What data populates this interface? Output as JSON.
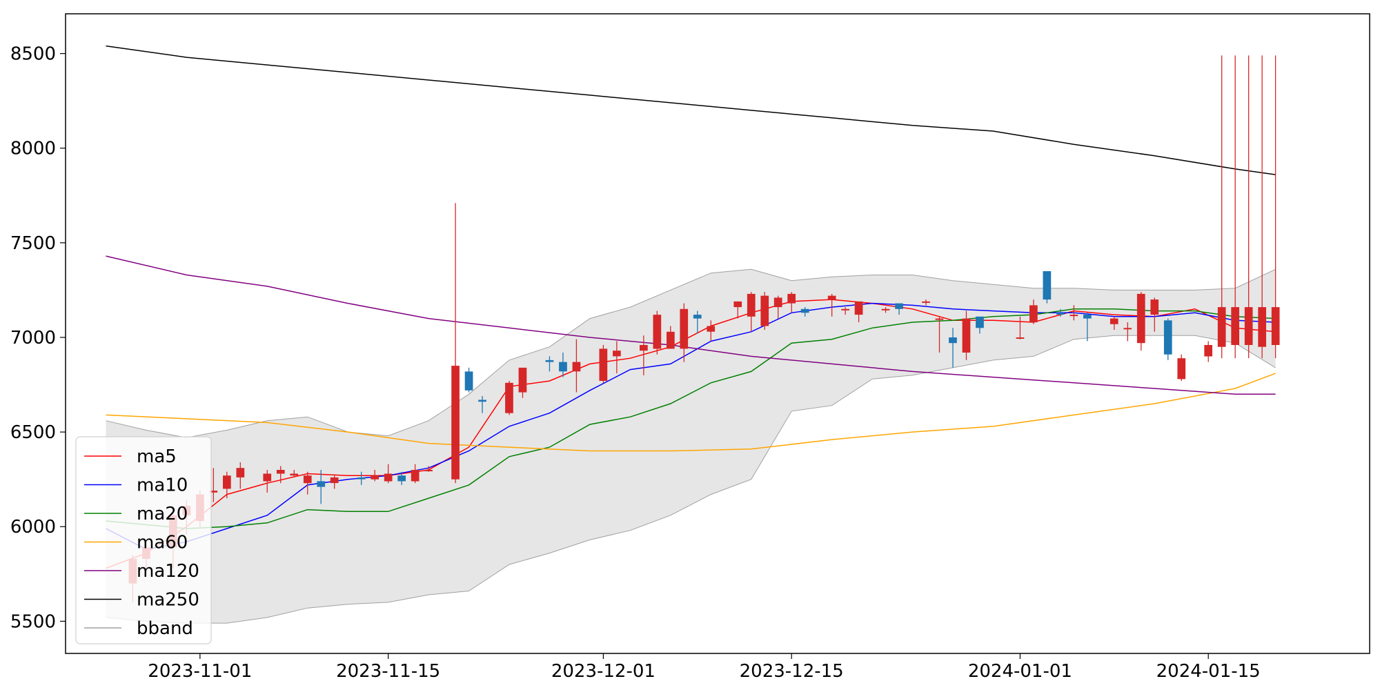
{
  "chart_data": {
    "type": "candlestick",
    "title": "",
    "xlabel": "",
    "ylabel": "",
    "xlim": [
      "2023-10-22",
      "2024-01-27"
    ],
    "ylim": [
      5330,
      8710
    ],
    "grid": false,
    "legend_position": "lower-left",
    "y_ticks": [
      5500,
      6000,
      6500,
      7000,
      7500,
      8000,
      8500
    ],
    "y_tick_labels": [
      "5500",
      "6000",
      "6500",
      "7000",
      "7500",
      "8000",
      "8500"
    ],
    "x_ticks": [
      "2023-11-01",
      "2023-11-15",
      "2023-12-01",
      "2023-12-15",
      "2024-01-01",
      "2024-01-15"
    ],
    "x_tick_labels": [
      "2023-11-01",
      "2023-11-15",
      "2023-12-01",
      "2023-12-15",
      "2024-01-01",
      "2024-01-15"
    ],
    "colors": {
      "up": "#d62728",
      "down": "#1f77b4",
      "bband_fill": "#e6e6e6",
      "bband_line": "#a0a0a0"
    },
    "candles": {
      "x": [
        "2023-10-27",
        "2023-10-28",
        "2023-10-30",
        "2023-10-31",
        "2023-11-01",
        "2023-11-02",
        "2023-11-03",
        "2023-11-04",
        "2023-11-06",
        "2023-11-07",
        "2023-11-08",
        "2023-11-09",
        "2023-11-10",
        "2023-11-11",
        "2023-11-13",
        "2023-11-14",
        "2023-11-15",
        "2023-11-16",
        "2023-11-17",
        "2023-11-18",
        "2023-11-20",
        "2023-11-21",
        "2023-11-22",
        "2023-11-24",
        "2023-11-25",
        "2023-11-27",
        "2023-11-28",
        "2023-11-29",
        "2023-12-01",
        "2023-12-02",
        "2023-12-04",
        "2023-12-05",
        "2023-12-06",
        "2023-12-07",
        "2023-12-08",
        "2023-12-09",
        "2023-12-11",
        "2023-12-12",
        "2023-12-13",
        "2023-12-14",
        "2023-12-15",
        "2023-12-16",
        "2023-12-18",
        "2023-12-19",
        "2023-12-20",
        "2023-12-22",
        "2023-12-23",
        "2023-12-25",
        "2023-12-26",
        "2023-12-27",
        "2023-12-28",
        "2023-12-29",
        "2024-01-01",
        "2024-01-02",
        "2024-01-03",
        "2024-01-04",
        "2024-01-05",
        "2024-01-06",
        "2024-01-08",
        "2024-01-09",
        "2024-01-10",
        "2024-01-11",
        "2024-01-12",
        "2024-01-13",
        "2024-01-15",
        "2024-01-16",
        "2024-01-17",
        "2024-01-18",
        "2024-01-19",
        "2024-01-20"
      ],
      "open": [
        5700,
        5830,
        5890,
        6060,
        6030,
        6180,
        6200,
        6260,
        6240,
        6280,
        6270,
        6230,
        6240,
        6230,
        6260,
        6250,
        6240,
        6270,
        6240,
        6300,
        6250,
        6820,
        6670,
        6600,
        6710,
        6880,
        6870,
        6820,
        6770,
        6900,
        6930,
        6940,
        6940,
        6940,
        7120,
        7030,
        7160,
        7110,
        7060,
        7160,
        7180,
        7150,
        7200,
        7150,
        7120,
        7150,
        7180,
        7190,
        7100,
        7000,
        6920,
        7110,
        7000,
        7080,
        7350,
        7130,
        7120,
        7120,
        7070,
        7050,
        6970,
        7120,
        7090,
        6780,
        6900,
        6950,
        6960,
        6960,
        6950,
        6960
      ],
      "close": [
        5830,
        5890,
        6060,
        6110,
        6170,
        6190,
        6270,
        6310,
        6280,
        6300,
        6280,
        6270,
        6210,
        6260,
        6250,
        6270,
        6280,
        6240,
        6300,
        6300,
        6850,
        6720,
        6660,
        6760,
        6840,
        6870,
        6820,
        6870,
        6940,
        6930,
        6960,
        7120,
        7030,
        7150,
        7100,
        7060,
        7190,
        7230,
        7220,
        7210,
        7230,
        7130,
        7220,
        7150,
        7190,
        7150,
        7150,
        7190,
        7100,
        6970,
        7100,
        7050,
        7000,
        7170,
        7200,
        7120,
        7120,
        7100,
        7100,
        7050,
        7230,
        7200,
        6910,
        6890,
        6960,
        7160,
        7160,
        7160,
        7160,
        7160
      ],
      "high": [
        5850,
        5910,
        6080,
        6140,
        6190,
        6310,
        6290,
        6340,
        6300,
        6320,
        6300,
        6290,
        6300,
        6270,
        6290,
        6300,
        6330,
        6290,
        6330,
        6320,
        7710,
        6840,
        6690,
        6770,
        6840,
        6900,
        6920,
        6990,
        6960,
        6980,
        7010,
        7140,
        7060,
        7180,
        7140,
        7090,
        7190,
        7240,
        7240,
        7220,
        7240,
        7160,
        7230,
        7160,
        7190,
        7160,
        7160,
        7200,
        7110,
        7050,
        7140,
        7060,
        7110,
        7200,
        7350,
        7150,
        7170,
        7130,
        7110,
        7080,
        7240,
        7210,
        7100,
        6910,
        6980,
        8490,
        8490,
        8490,
        8490,
        8490
      ],
      "low": [
        5600,
        5760,
        5780,
        5960,
        6000,
        6130,
        6150,
        6200,
        6180,
        6230,
        6260,
        6170,
        6120,
        6200,
        6220,
        6240,
        6230,
        6220,
        6230,
        6290,
        6230,
        6710,
        6600,
        6590,
        6680,
        6820,
        6790,
        6710,
        6760,
        6810,
        6800,
        6910,
        6940,
        6870,
        7020,
        6980,
        7100,
        7030,
        7040,
        7100,
        7130,
        7110,
        7110,
        7120,
        7080,
        7130,
        7120,
        7170,
        6920,
        6840,
        6880,
        7020,
        6990,
        7070,
        7180,
        7110,
        7090,
        6980,
        7040,
        6980,
        6930,
        7030,
        6880,
        6770,
        6870,
        6890,
        6890,
        6890,
        6890,
        6890
      ]
    },
    "series": [
      {
        "name": "ma5",
        "color": "red",
        "x": [
          "2023-10-25",
          "2023-10-28",
          "2023-10-31",
          "2023-11-03",
          "2023-11-06",
          "2023-11-09",
          "2023-11-12",
          "2023-11-15",
          "2023-11-18",
          "2023-11-21",
          "2023-11-24",
          "2023-11-27",
          "2023-11-30",
          "2023-12-03",
          "2023-12-06",
          "2023-12-09",
          "2023-12-12",
          "2023-12-15",
          "2023-12-18",
          "2023-12-21",
          "2023-12-24",
          "2023-12-27",
          "2023-12-30",
          "2024-01-02",
          "2024-01-05",
          "2024-01-08",
          "2024-01-11",
          "2024-01-14",
          "2024-01-17",
          "2024-01-20"
        ],
        "y": [
          5780,
          5860,
          6000,
          6170,
          6230,
          6280,
          6270,
          6270,
          6300,
          6420,
          6740,
          6770,
          6860,
          6890,
          6950,
          7060,
          7130,
          7190,
          7200,
          7180,
          7150,
          7090,
          7090,
          7080,
          7140,
          7120,
          7110,
          7150,
          7050,
          7030
        ]
      },
      {
        "name": "ma10",
        "color": "blue",
        "x": [
          "2023-10-25",
          "2023-10-28",
          "2023-10-31",
          "2023-11-03",
          "2023-11-06",
          "2023-11-09",
          "2023-11-12",
          "2023-11-15",
          "2023-11-18",
          "2023-11-21",
          "2023-11-24",
          "2023-11-27",
          "2023-11-30",
          "2023-12-03",
          "2023-12-06",
          "2023-12-09",
          "2023-12-12",
          "2023-12-15",
          "2023-12-18",
          "2023-12-21",
          "2023-12-24",
          "2023-12-27",
          "2023-12-30",
          "2024-01-02",
          "2024-01-05",
          "2024-01-08",
          "2024-01-11",
          "2024-01-14",
          "2024-01-17",
          "2024-01-20"
        ],
        "y": [
          5990,
          5880,
          5920,
          5990,
          6060,
          6220,
          6250,
          6270,
          6310,
          6400,
          6530,
          6600,
          6720,
          6830,
          6860,
          6980,
          7030,
          7130,
          7160,
          7180,
          7170,
          7150,
          7140,
          7130,
          7130,
          7110,
          7110,
          7130,
          7090,
          7080
        ]
      },
      {
        "name": "ma20",
        "color": "green",
        "x": [
          "2023-10-25",
          "2023-10-28",
          "2023-10-31",
          "2023-11-03",
          "2023-11-06",
          "2023-11-09",
          "2023-11-12",
          "2023-11-15",
          "2023-11-18",
          "2023-11-21",
          "2023-11-24",
          "2023-11-27",
          "2023-11-30",
          "2023-12-03",
          "2023-12-06",
          "2023-12-09",
          "2023-12-12",
          "2023-12-15",
          "2023-12-18",
          "2023-12-21",
          "2023-12-24",
          "2023-12-27",
          "2023-12-30",
          "2024-01-02",
          "2024-01-05",
          "2024-01-08",
          "2024-01-11",
          "2024-01-14",
          "2024-01-17",
          "2024-01-20"
        ],
        "y": [
          6030,
          6010,
          5990,
          6000,
          6020,
          6090,
          6080,
          6080,
          6150,
          6220,
          6370,
          6420,
          6540,
          6580,
          6650,
          6760,
          6820,
          6970,
          6990,
          7050,
          7080,
          7090,
          7110,
          7120,
          7150,
          7150,
          7140,
          7140,
          7110,
          7100
        ]
      },
      {
        "name": "ma60",
        "color": "orange",
        "x": [
          "2023-10-25",
          "2023-10-31",
          "2023-11-06",
          "2023-11-12",
          "2023-11-18",
          "2023-11-24",
          "2023-11-30",
          "2023-12-06",
          "2023-12-12",
          "2023-12-18",
          "2023-12-24",
          "2023-12-30",
          "2024-01-05",
          "2024-01-11",
          "2024-01-17",
          "2024-01-20"
        ],
        "y": [
          6590,
          6570,
          6550,
          6500,
          6440,
          6420,
          6400,
          6400,
          6410,
          6460,
          6500,
          6530,
          6590,
          6650,
          6730,
          6810
        ]
      },
      {
        "name": "ma120",
        "color": "purple",
        "x": [
          "2023-10-25",
          "2023-10-31",
          "2023-11-06",
          "2023-11-12",
          "2023-11-18",
          "2023-11-24",
          "2023-11-30",
          "2023-12-06",
          "2023-12-12",
          "2023-12-18",
          "2023-12-24",
          "2023-12-30",
          "2024-01-05",
          "2024-01-11",
          "2024-01-17",
          "2024-01-20"
        ],
        "y": [
          7430,
          7330,
          7270,
          7180,
          7100,
          7050,
          7000,
          6960,
          6900,
          6860,
          6820,
          6790,
          6760,
          6730,
          6700,
          6700
        ]
      },
      {
        "name": "ma250",
        "color": "black",
        "x": [
          "2023-10-25",
          "2023-10-31",
          "2023-11-06",
          "2023-11-12",
          "2023-11-18",
          "2023-11-24",
          "2023-11-30",
          "2023-12-06",
          "2023-12-12",
          "2023-12-18",
          "2023-12-24",
          "2023-12-30",
          "2024-01-05",
          "2024-01-11",
          "2024-01-17",
          "2024-01-20"
        ],
        "y": [
          8540,
          8480,
          8440,
          8400,
          8360,
          8320,
          8280,
          8240,
          8200,
          8160,
          8120,
          8090,
          8020,
          7960,
          7890,
          7860
        ]
      }
    ],
    "bband": {
      "name": "bband",
      "x": [
        "2023-10-25",
        "2023-10-28",
        "2023-10-31",
        "2023-11-03",
        "2023-11-06",
        "2023-11-09",
        "2023-11-12",
        "2023-11-15",
        "2023-11-18",
        "2023-11-21",
        "2023-11-24",
        "2023-11-27",
        "2023-11-30",
        "2023-12-03",
        "2023-12-06",
        "2023-12-09",
        "2023-12-12",
        "2023-12-15",
        "2023-12-18",
        "2023-12-21",
        "2023-12-24",
        "2023-12-27",
        "2023-12-30",
        "2024-01-02",
        "2024-01-05",
        "2024-01-08",
        "2024-01-11",
        "2024-01-14",
        "2024-01-17",
        "2024-01-20"
      ],
      "upper": [
        6560,
        6510,
        6470,
        6510,
        6560,
        6580,
        6500,
        6480,
        6560,
        6700,
        6880,
        6950,
        7100,
        7160,
        7250,
        7340,
        7360,
        7300,
        7320,
        7330,
        7330,
        7300,
        7280,
        7260,
        7260,
        7250,
        7250,
        7250,
        7260,
        7360
      ],
      "lower": [
        5520,
        5500,
        5490,
        5490,
        5520,
        5570,
        5590,
        5600,
        5640,
        5660,
        5800,
        5860,
        5930,
        5980,
        6060,
        6170,
        6250,
        6610,
        6640,
        6780,
        6800,
        6840,
        6880,
        6900,
        6990,
        7010,
        7010,
        7010,
        6970,
        6840
      ]
    }
  }
}
